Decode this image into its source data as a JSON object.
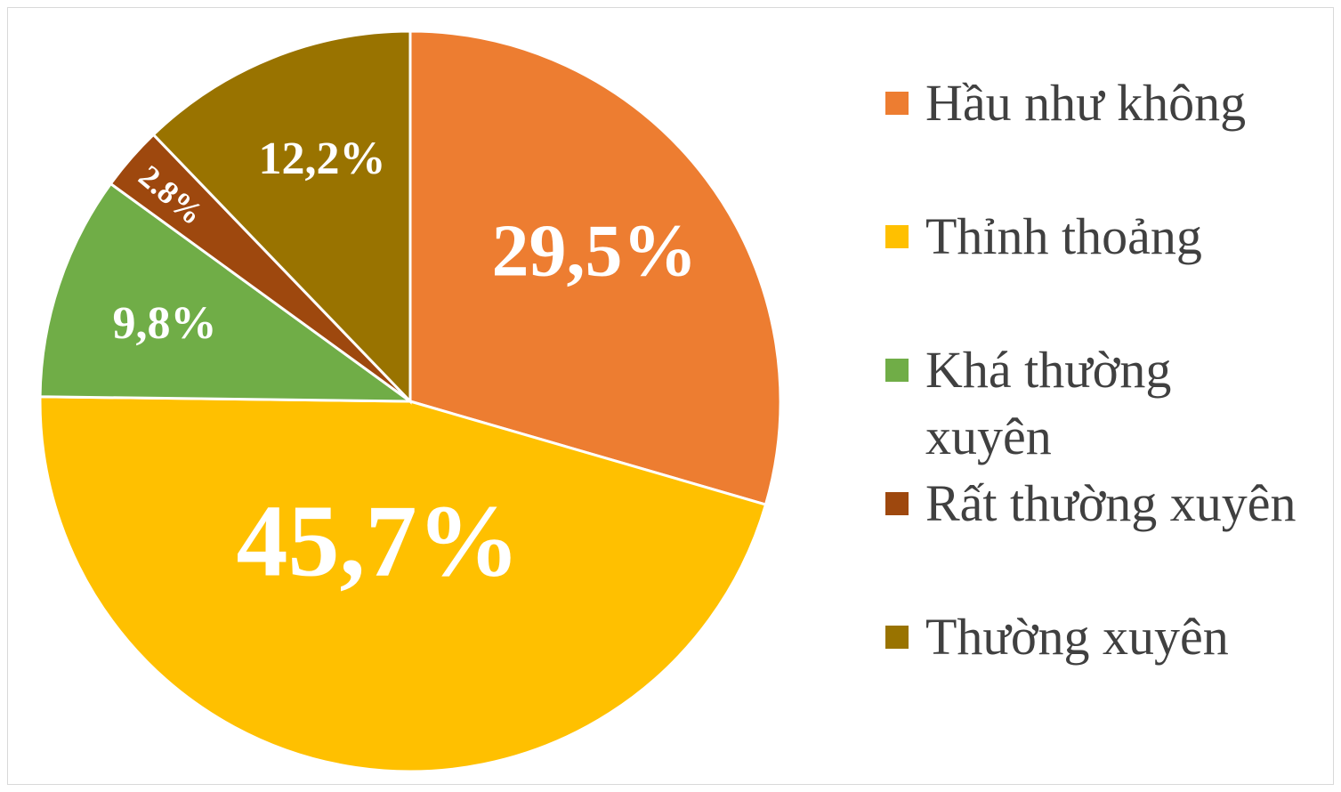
{
  "chart_data": {
    "type": "pie",
    "categories": [
      "Hầu như không",
      "Thỉnh thoảng",
      "Khá thường xuyên",
      "Rất thường xuyên",
      "Thường xuyên"
    ],
    "values": [
      29.5,
      45.7,
      9.8,
      2.8,
      12.2
    ],
    "value_labels": [
      "29,5%",
      "45,7%",
      "9,8%",
      "2.8%",
      "12,2%"
    ],
    "colors": [
      "#ed7d31",
      "#ffc000",
      "#70ad47",
      "#9e480e",
      "#997300"
    ],
    "legend": "right"
  }
}
